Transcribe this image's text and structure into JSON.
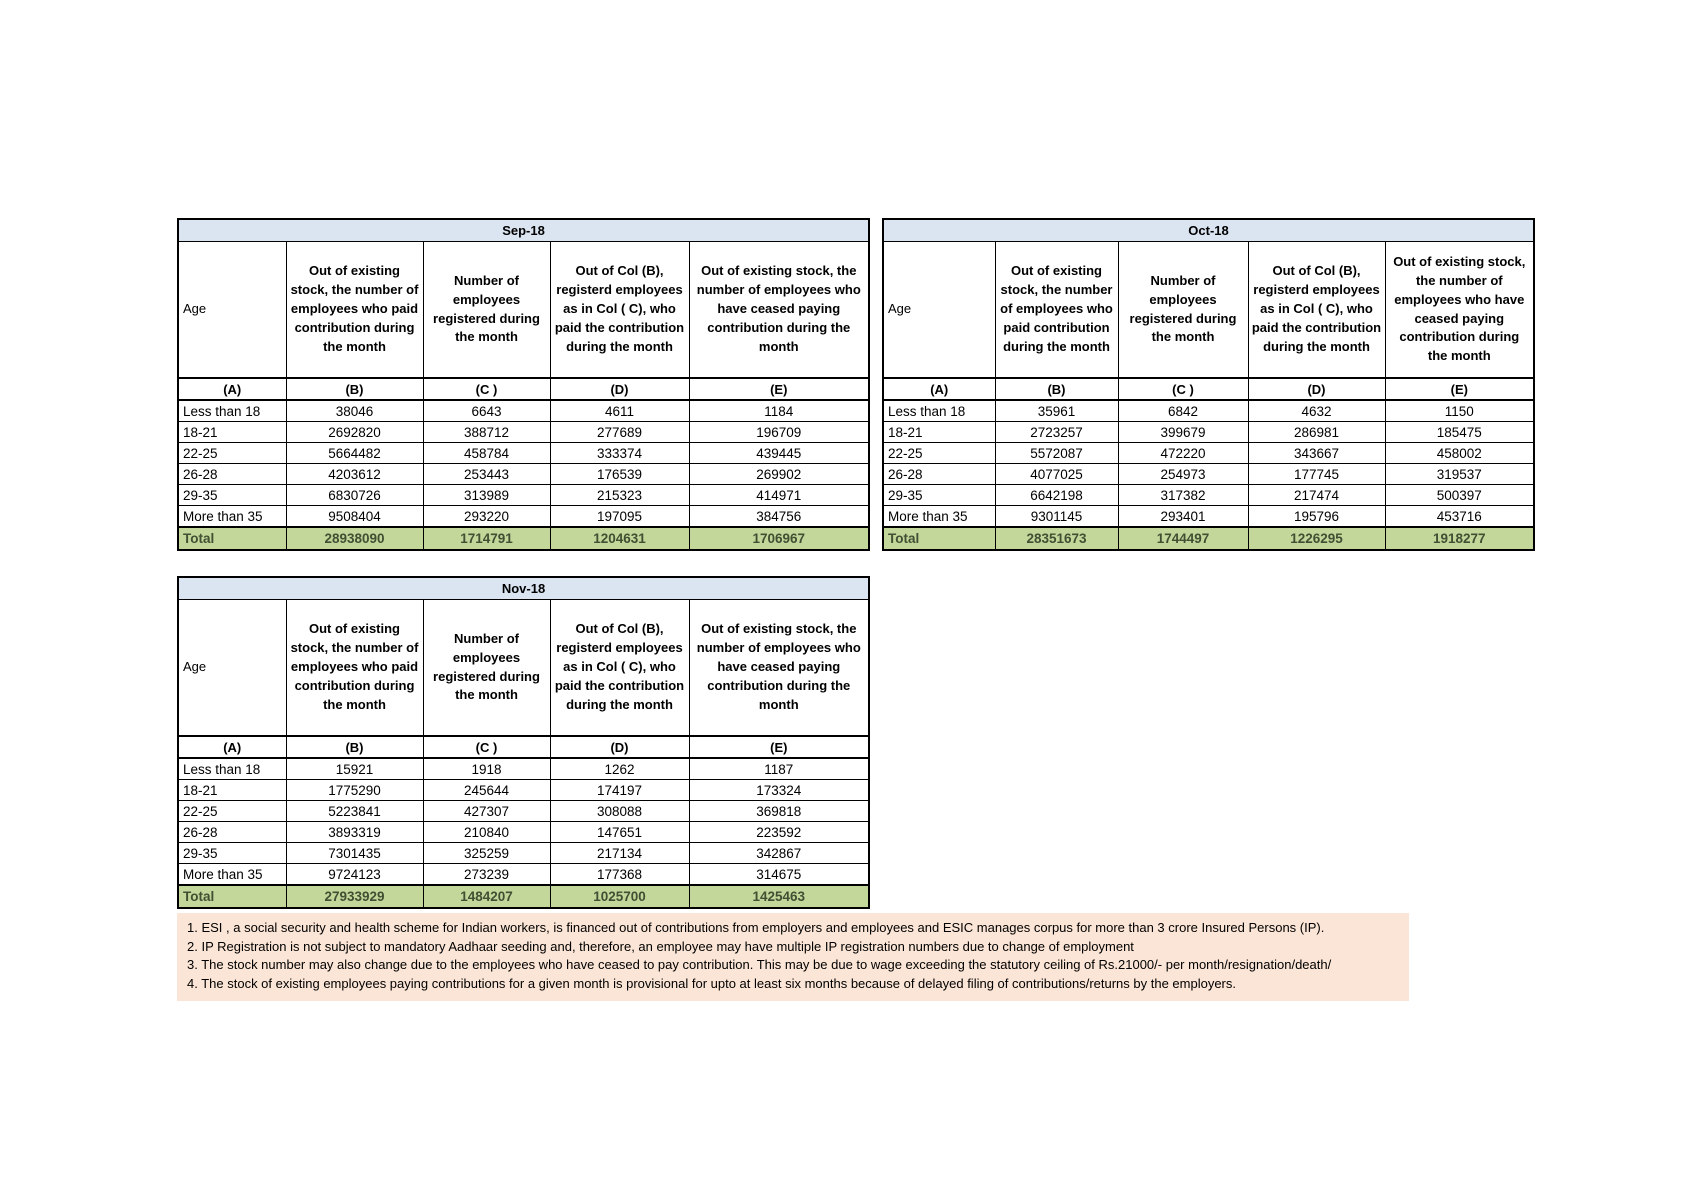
{
  "tables": [
    {
      "title": "Sep-18",
      "headers": [
        "Age",
        "Out of existing stock, the number of employees who paid contribution during the month",
        "Number of employees registered during the month",
        "Out of Col (B), registerd employees as in Col ( C), who paid the contribution during the month",
        "Out of existing stock, the number of  employees  who have ceased paying contribution during the month"
      ],
      "letters": [
        "(A)",
        "(B)",
        "(C )",
        "(D)",
        "(E)"
      ],
      "rows": [
        {
          "label": "Less than 18",
          "values": [
            38046,
            6643,
            4611,
            1184
          ]
        },
        {
          "label": "18-21",
          "values": [
            2692820,
            388712,
            277689,
            196709
          ]
        },
        {
          "label": "22-25",
          "values": [
            5664482,
            458784,
            333374,
            439445
          ]
        },
        {
          "label": "26-28",
          "values": [
            4203612,
            253443,
            176539,
            269902
          ]
        },
        {
          "label": "29-35",
          "values": [
            6830726,
            313989,
            215323,
            414971
          ]
        },
        {
          "label": "More than 35",
          "values": [
            9508404,
            293220,
            197095,
            384756
          ]
        }
      ],
      "total": {
        "label": "Total",
        "values": [
          28938090,
          1714791,
          1204631,
          1706967
        ]
      }
    },
    {
      "title": "Oct-18",
      "headers": [
        "Age",
        "Out of existing stock, the number of employees who paid contribution during the month",
        "Number of employees registered during the month",
        "Out of Col (B), registerd employees as in Col ( C), who paid the contribution during the month",
        "Out of existing stock, the number of  employees  who have ceased paying contribution during the month"
      ],
      "letters": [
        "(A)",
        "(B)",
        "(C )",
        "(D)",
        "(E)"
      ],
      "rows": [
        {
          "label": "Less than 18",
          "values": [
            35961,
            6842,
            4632,
            1150
          ]
        },
        {
          "label": "18-21",
          "values": [
            2723257,
            399679,
            286981,
            185475
          ]
        },
        {
          "label": "22-25",
          "values": [
            5572087,
            472220,
            343667,
            458002
          ]
        },
        {
          "label": "26-28",
          "values": [
            4077025,
            254973,
            177745,
            319537
          ]
        },
        {
          "label": "29-35",
          "values": [
            6642198,
            317382,
            217474,
            500397
          ]
        },
        {
          "label": "More than 35",
          "values": [
            9301145,
            293401,
            195796,
            453716
          ]
        }
      ],
      "total": {
        "label": "Total",
        "values": [
          28351673,
          1744497,
          1226295,
          1918277
        ]
      }
    },
    {
      "title": "Nov-18",
      "headers": [
        "Age",
        "Out of existing stock, the number of employees who paid contribution during the month",
        "Number of employees registered during the month",
        "Out of Col (B), registerd employees as in Col ( C), who paid the contribution during the month",
        "Out of existing stock, the number of  employees  who have ceased paying contribution during the month"
      ],
      "letters": [
        "(A)",
        "(B)",
        "(C )",
        "(D)",
        "(E)"
      ],
      "rows": [
        {
          "label": "Less than 18",
          "values": [
            15921,
            1918,
            1262,
            1187
          ]
        },
        {
          "label": "18-21",
          "values": [
            1775290,
            245644,
            174197,
            173324
          ]
        },
        {
          "label": "22-25",
          "values": [
            5223841,
            427307,
            308088,
            369818
          ]
        },
        {
          "label": "26-28",
          "values": [
            3893319,
            210840,
            147651,
            223592
          ]
        },
        {
          "label": "29-35",
          "values": [
            7301435,
            325259,
            217134,
            342867
          ]
        },
        {
          "label": "More than 35",
          "values": [
            9724123,
            273239,
            177368,
            314675
          ]
        }
      ],
      "total": {
        "label": "Total",
        "values": [
          27933929,
          1484207,
          1025700,
          1425463
        ]
      }
    }
  ],
  "notes": [
    "1. ESI , a social security and health scheme for Indian workers, is financed out of contributions from employers and employees and ESIC manages corpus for more than 3 crore Insured Persons (IP).",
    "2. IP Registration is not subject to mandatory Aadhaar seeding and, therefore, an employee may have multiple IP registration numbers due to change of employment",
    "3. The stock number may also change due to the employees who have ceased to pay contribution. This may  be due to wage exceeding the statutory ceiling of  Rs.21000/- per month/resignation/death/",
    "4. The stock of existing employees paying contributions for a given month is provisional for upto at least six months because of delayed filing of contributions/returns by the employers."
  ],
  "colors": {
    "title_bar": "#DBE5F1",
    "total_row": "#C4D79B",
    "notes_background": "#FBE5D6",
    "border": "#000000"
  }
}
